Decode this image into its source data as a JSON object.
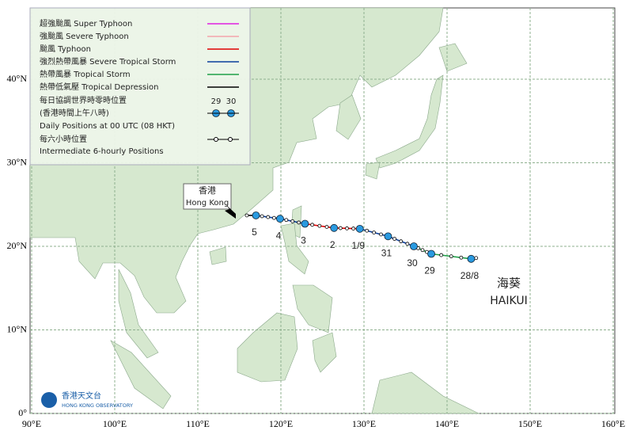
{
  "legend": {
    "items": [
      {
        "name": "超強颱風 Super Typhoon",
        "color": "#e020e0"
      },
      {
        "name": "強颱風 Severe Typhoon",
        "color": "#f4a4ac"
      },
      {
        "name": "颱風 Typhoon",
        "color": "#e00000"
      },
      {
        "name": "強烈熱帶風暴 Severe Tropical Storm",
        "color": "#0a3f9c"
      },
      {
        "name": "熱帶風暴 Tropical Storm",
        "color": "#1fa048"
      },
      {
        "name": "熱帶低氣壓  Tropical Depression",
        "color": "#000000"
      }
    ],
    "daily_zh": "每日協調世界時零時位置",
    "daily_zh2": "(香港時間上午八時)",
    "daily_en": "Daily Positions at 00 UTC (08 HKT)",
    "sample_days": [
      "29",
      "30"
    ],
    "six_zh": "每六小時位置",
    "six_en": "Intermediate 6-hourly Positions"
  },
  "lon_lines": [
    {
      "value": 90,
      "label": "90°E"
    },
    {
      "value": 100,
      "label": "100°E"
    },
    {
      "value": 110,
      "label": "110°E"
    },
    {
      "value": 120,
      "label": "120°E"
    },
    {
      "value": 130,
      "label": "130°E"
    },
    {
      "value": 140,
      "label": "140°E"
    },
    {
      "value": 150,
      "label": "150°E"
    },
    {
      "value": 160,
      "label": "160°E"
    }
  ],
  "lat_lines": [
    {
      "value": 0,
      "label": "0°"
    },
    {
      "value": 10,
      "label": "10°N"
    },
    {
      "value": 20,
      "label": "20°N"
    },
    {
      "value": 30,
      "label": "30°N"
    },
    {
      "value": 40,
      "label": "40°N"
    }
  ],
  "track": [
    {
      "lon": 143.5,
      "lat": 18.6,
      "label": null,
      "stage": 4
    },
    {
      "lon": 142.9,
      "lat": 18.5,
      "label": "28/8",
      "stage": 4
    },
    {
      "lon": 138.1,
      "lat": 19.1,
      "label": "29",
      "stage": 4
    },
    {
      "lon": 136.0,
      "lat": 20.0,
      "label": "30",
      "stage": 4
    },
    {
      "lon": 132.9,
      "lat": 21.2,
      "label": "31",
      "stage": 3
    },
    {
      "lon": 129.5,
      "lat": 22.1,
      "label": "1/9",
      "stage": 3
    },
    {
      "lon": 126.4,
      "lat": 22.2,
      "label": "2",
      "stage": 2
    },
    {
      "lon": 122.9,
      "lat": 22.7,
      "label": "3",
      "stage": 2
    },
    {
      "lon": 119.9,
      "lat": 23.3,
      "label": "4",
      "stage": 3
    },
    {
      "lon": 117.0,
      "lat": 23.7,
      "label": "5",
      "stage": 3
    },
    {
      "lon": 115.9,
      "lat": 23.7,
      "label": null,
      "stage": 5
    }
  ],
  "hong_kong": {
    "zh": "香港",
    "en": "Hong Kong"
  },
  "storm": {
    "zh": "海葵",
    "en": "HAIKUI"
  },
  "logo": {
    "zh": "香港天文台",
    "en": "HONG KONG OBSERVATORY"
  }
}
